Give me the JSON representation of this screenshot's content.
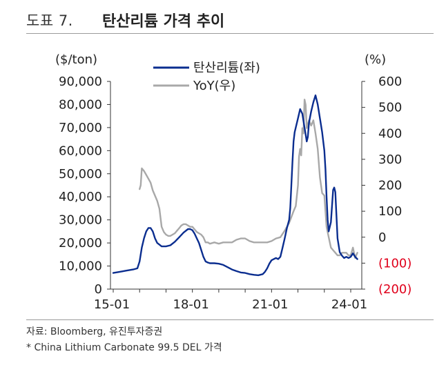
{
  "header": {
    "figure_number": "도표 7.",
    "title": "탄산리튬 가격 추이"
  },
  "footer": {
    "source": "자료: Bloomberg, 유진투자증권",
    "note": "* China Lithium Carbonate 99.5 DEL 가격"
  },
  "colors": {
    "price_line": "#0a2d8f",
    "yoy_line": "#a8a8a8",
    "negative_tick": "#e0001b",
    "axis": "#333333"
  },
  "chart_data": {
    "type": "line",
    "title": "탄산리튬 가격 추이",
    "x_tick_labels": [
      "15-01",
      "18-01",
      "21-01",
      "24-01"
    ],
    "x_ticks_t": [
      0,
      36,
      72,
      108
    ],
    "x_range_t": [
      0,
      111
    ],
    "x_unit": "months since 2015-01",
    "y_left": {
      "unit_label": "($/ton)",
      "range": [
        0,
        90000
      ],
      "ticks": [
        0,
        10000,
        20000,
        30000,
        40000,
        50000,
        60000,
        70000,
        80000,
        90000
      ],
      "tick_labels": [
        "0",
        "10,000",
        "20,000",
        "30,000",
        "40,000",
        "50,000",
        "60,000",
        "70,000",
        "80,000",
        "90,000"
      ]
    },
    "y_right": {
      "unit_label": "(%)",
      "range": [
        -200,
        600
      ],
      "ticks": [
        -200,
        -100,
        0,
        100,
        200,
        300,
        400,
        500,
        600
      ],
      "tick_labels": [
        "(200)",
        "(100)",
        "0",
        "100",
        "200",
        "300",
        "400",
        "500",
        "600"
      ]
    },
    "legend": {
      "position": "top-center",
      "entries": [
        "탄산리튬(좌)",
        "YoY(우)"
      ]
    },
    "series": [
      {
        "name": "탄산리튬(좌)",
        "axis": "left",
        "x": [
          0,
          3,
          6,
          9,
          11,
          12,
          13,
          14,
          15,
          16,
          17,
          18,
          19,
          20,
          22,
          24,
          26,
          28,
          30,
          32,
          34,
          35,
          36,
          37,
          38,
          39,
          40,
          41,
          42,
          43,
          44,
          46,
          48,
          50,
          52,
          54,
          56,
          58,
          60,
          62,
          64,
          66,
          68,
          69,
          70,
          71,
          72,
          73,
          74,
          75,
          76,
          77,
          78,
          79,
          80,
          80.5,
          81,
          81.5,
          82,
          82.5,
          83,
          84,
          85,
          86,
          87,
          87.5,
          88,
          88.5,
          89,
          90,
          91,
          92,
          93,
          94,
          95,
          96,
          96.5,
          97,
          97.5,
          98,
          99,
          100,
          100.5,
          101,
          101.5,
          102,
          103,
          104,
          105,
          106,
          107,
          108,
          109,
          110,
          111
        ],
        "values": [
          7000,
          7500,
          8000,
          8500,
          9000,
          12000,
          18000,
          22000,
          25000,
          26500,
          26500,
          25000,
          22000,
          20000,
          18500,
          18500,
          19000,
          20500,
          22500,
          24500,
          26000,
          26000,
          25500,
          24000,
          22000,
          20000,
          17000,
          14000,
          12000,
          11500,
          11200,
          11200,
          11000,
          10500,
          9500,
          8500,
          7800,
          7200,
          7000,
          6500,
          6200,
          6000,
          6500,
          7500,
          9000,
          11000,
          12500,
          13000,
          13500,
          13000,
          14000,
          18000,
          22000,
          26500,
          30000,
          35000,
          45000,
          55000,
          64000,
          68000,
          70000,
          74000,
          78000,
          76000,
          70000,
          67000,
          64000,
          66000,
          72000,
          77000,
          81000,
          84000,
          80000,
          74000,
          68000,
          60000,
          52000,
          40000,
          30000,
          25000,
          29000,
          43000,
          44000,
          42000,
          32000,
          22000,
          16000,
          14500,
          13500,
          14000,
          13500,
          14000,
          15500,
          14000,
          13000
        ]
      },
      {
        "name": "YoY(우)",
        "axis": "right",
        "x": [
          12,
          12.5,
          13,
          14,
          15,
          16,
          17,
          18,
          19,
          20,
          21,
          22,
          23,
          24,
          25,
          26,
          27,
          28,
          29,
          30,
          31,
          32,
          33,
          34,
          35,
          36,
          37,
          38,
          39,
          40,
          41,
          42,
          43,
          44,
          46,
          48,
          50,
          52,
          54,
          56,
          58,
          60,
          62,
          64,
          66,
          68,
          70,
          72,
          74,
          76,
          78,
          80,
          82,
          83,
          84,
          84.5,
          85,
          85.5,
          86,
          86.5,
          87,
          87.5,
          88,
          89,
          90,
          91,
          92,
          93,
          94,
          95,
          96,
          97,
          98,
          99,
          100,
          101,
          102,
          103,
          104,
          105,
          106,
          107,
          108,
          109,
          110,
          111
        ],
        "values": [
          185,
          200,
          265,
          255,
          240,
          225,
          210,
          180,
          160,
          140,
          110,
          40,
          20,
          10,
          5,
          5,
          10,
          15,
          25,
          35,
          45,
          50,
          50,
          45,
          40,
          40,
          30,
          20,
          15,
          10,
          0,
          -20,
          -20,
          -25,
          -20,
          -25,
          -20,
          -20,
          -20,
          -10,
          -5,
          -5,
          -15,
          -20,
          -20,
          -20,
          -20,
          -15,
          -5,
          0,
          25,
          55,
          100,
          120,
          200,
          310,
          340,
          315,
          420,
          400,
          530,
          510,
          420,
          450,
          430,
          450,
          400,
          340,
          230,
          170,
          160,
          40,
          0,
          -40,
          -50,
          -60,
          -70,
          -70,
          -60,
          -60,
          -60,
          -70,
          -70,
          -40,
          -80,
          -60
        ]
      }
    ]
  }
}
